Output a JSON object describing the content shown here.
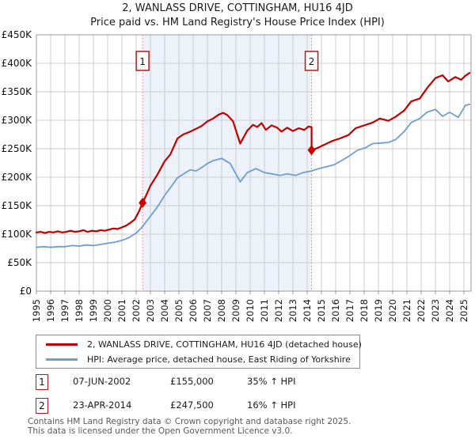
{
  "title": "2, WANLASS DRIVE, COTTINGHAM, HU16 4JD",
  "subtitle": "Price paid vs. HM Land Registry's House Price Index (HPI)",
  "colors": {
    "price_paid_line": "#c00000",
    "hpi_line": "#6d9dd1",
    "marker": "#cc0000",
    "event_line": "#e87272",
    "event_box_border": "#b21a1a",
    "shaded_band": "#edf2fa",
    "grid": "#cccccc",
    "plot_border": "#999999"
  },
  "chart_data": {
    "type": "line",
    "x_range": [
      1995,
      2025.5
    ],
    "y_range_k": [
      0,
      450
    ],
    "grid": true,
    "x_ticks": [
      1995,
      1996,
      1997,
      1998,
      1999,
      2000,
      2001,
      2002,
      2003,
      2004,
      2005,
      2006,
      2007,
      2008,
      2009,
      2010,
      2011,
      2012,
      2013,
      2014,
      2015,
      2016,
      2017,
      2018,
      2019,
      2020,
      2021,
      2022,
      2023,
      2024,
      2025
    ],
    "y_tick_values_k": [
      0,
      50,
      100,
      150,
      200,
      250,
      300,
      350,
      400,
      450
    ],
    "y_tick_labels": [
      "£0",
      "£50K",
      "£100K",
      "£150K",
      "£200K",
      "£250K",
      "£300K",
      "£350K",
      "£400K",
      "£450K"
    ],
    "shaded_region_x": [
      2002.45,
      2014.31
    ],
    "series": [
      {
        "name": "2, WANLASS DRIVE, COTTINGHAM, HU16 4JD (detached house)",
        "color": "#c00000",
        "width": 2.2,
        "points_year_valueK": [
          [
            1995.0,
            103
          ],
          [
            1995.3,
            104
          ],
          [
            1995.6,
            102
          ],
          [
            1995.9,
            104
          ],
          [
            1996.2,
            103
          ],
          [
            1996.5,
            105
          ],
          [
            1996.8,
            103
          ],
          [
            1997.1,
            104
          ],
          [
            1997.4,
            106
          ],
          [
            1997.7,
            104
          ],
          [
            1998.0,
            105
          ],
          [
            1998.3,
            107
          ],
          [
            1998.6,
            104
          ],
          [
            1998.9,
            106
          ],
          [
            1999.2,
            105
          ],
          [
            1999.5,
            107
          ],
          [
            1999.8,
            106
          ],
          [
            2000.1,
            108
          ],
          [
            2000.4,
            110
          ],
          [
            2000.7,
            109
          ],
          [
            2001.0,
            112
          ],
          [
            2001.3,
            115
          ],
          [
            2001.6,
            120
          ],
          [
            2001.9,
            126
          ],
          [
            2002.2,
            140
          ],
          [
            2002.45,
            155
          ],
          [
            2002.7,
            168
          ],
          [
            2003.0,
            185
          ],
          [
            2003.5,
            205
          ],
          [
            2004.0,
            228
          ],
          [
            2004.4,
            240
          ],
          [
            2004.9,
            268
          ],
          [
            2005.3,
            275
          ],
          [
            2005.8,
            280
          ],
          [
            2006.2,
            285
          ],
          [
            2006.6,
            290
          ],
          [
            2007.0,
            298
          ],
          [
            2007.4,
            303
          ],
          [
            2007.8,
            310
          ],
          [
            2008.1,
            313
          ],
          [
            2008.4,
            309
          ],
          [
            2008.8,
            298
          ],
          [
            2009.3,
            259
          ],
          [
            2009.8,
            282
          ],
          [
            2010.2,
            292
          ],
          [
            2010.5,
            288
          ],
          [
            2010.8,
            295
          ],
          [
            2011.1,
            283
          ],
          [
            2011.5,
            291
          ],
          [
            2011.9,
            287
          ],
          [
            2012.2,
            280
          ],
          [
            2012.6,
            287
          ],
          [
            2013.0,
            281
          ],
          [
            2013.4,
            286
          ],
          [
            2013.8,
            283
          ],
          [
            2014.1,
            289
          ],
          [
            2014.31,
            288
          ],
          [
            2014.31,
            247.5
          ],
          [
            2014.7,
            251
          ],
          [
            2015.2,
            257
          ],
          [
            2015.8,
            264
          ],
          [
            2016.3,
            268
          ],
          [
            2016.9,
            274
          ],
          [
            2017.4,
            286
          ],
          [
            2018.0,
            291
          ],
          [
            2018.6,
            296
          ],
          [
            2019.1,
            303
          ],
          [
            2019.7,
            299
          ],
          [
            2020.2,
            306
          ],
          [
            2020.8,
            317
          ],
          [
            2021.3,
            333
          ],
          [
            2021.9,
            338
          ],
          [
            2022.4,
            356
          ],
          [
            2023.0,
            374
          ],
          [
            2023.5,
            379
          ],
          [
            2023.9,
            368
          ],
          [
            2024.4,
            376
          ],
          [
            2024.8,
            371
          ],
          [
            2025.1,
            378
          ],
          [
            2025.4,
            383
          ]
        ]
      },
      {
        "name": "HPI: Average price, detached house, East Riding of Yorkshire",
        "color": "#6d9dd1",
        "width": 1.8,
        "points_year_valueK": [
          [
            1995.0,
            77
          ],
          [
            1995.5,
            78
          ],
          [
            1996.0,
            77
          ],
          [
            1996.5,
            78
          ],
          [
            1997.0,
            78
          ],
          [
            1997.5,
            80
          ],
          [
            1998.0,
            79
          ],
          [
            1998.5,
            81
          ],
          [
            1999.0,
            80
          ],
          [
            1999.5,
            82
          ],
          [
            2000.0,
            84
          ],
          [
            2000.5,
            86
          ],
          [
            2001.0,
            89
          ],
          [
            2001.5,
            94
          ],
          [
            2002.0,
            102
          ],
          [
            2002.4,
            112
          ],
          [
            2002.8,
            125
          ],
          [
            2003.2,
            138
          ],
          [
            2003.6,
            152
          ],
          [
            2004.0,
            168
          ],
          [
            2004.5,
            185
          ],
          [
            2004.9,
            199
          ],
          [
            2005.4,
            207
          ],
          [
            2005.8,
            213
          ],
          [
            2006.2,
            211
          ],
          [
            2006.6,
            217
          ],
          [
            2007.0,
            224
          ],
          [
            2007.4,
            229
          ],
          [
            2008.0,
            233
          ],
          [
            2008.6,
            224
          ],
          [
            2009.3,
            192
          ],
          [
            2009.8,
            208
          ],
          [
            2010.4,
            215
          ],
          [
            2011.0,
            208
          ],
          [
            2011.5,
            206
          ],
          [
            2012.1,
            203
          ],
          [
            2012.6,
            206
          ],
          [
            2013.2,
            203
          ],
          [
            2013.7,
            208
          ],
          [
            2014.3,
            211
          ],
          [
            2014.8,
            215
          ],
          [
            2015.3,
            218
          ],
          [
            2015.9,
            222
          ],
          [
            2016.4,
            229
          ],
          [
            2017.0,
            238
          ],
          [
            2017.5,
            247
          ],
          [
            2018.1,
            252
          ],
          [
            2018.6,
            259
          ],
          [
            2019.2,
            260
          ],
          [
            2019.7,
            261
          ],
          [
            2020.2,
            266
          ],
          [
            2020.8,
            280
          ],
          [
            2021.3,
            296
          ],
          [
            2021.9,
            303
          ],
          [
            2022.4,
            314
          ],
          [
            2023.0,
            319
          ],
          [
            2023.5,
            307
          ],
          [
            2024.0,
            314
          ],
          [
            2024.6,
            305
          ],
          [
            2025.1,
            326
          ],
          [
            2025.4,
            328
          ]
        ]
      }
    ],
    "sale_markers": [
      {
        "label": "1",
        "x_year": 2002.45,
        "value_k": 155
      },
      {
        "label": "2",
        "x_year": 2014.31,
        "value_k": 247.5
      }
    ]
  },
  "legend": {
    "items": [
      {
        "label": "2, WANLASS DRIVE, COTTINGHAM, HU16 4JD (detached house)"
      },
      {
        "label": "HPI: Average price, detached house, East Riding of Yorkshire"
      }
    ]
  },
  "annotations": [
    {
      "num": "1",
      "date": "07-JUN-2002",
      "price": "£155,000",
      "hpi": "35% ↑ HPI"
    },
    {
      "num": "2",
      "date": "23-APR-2014",
      "price": "£247,500",
      "hpi": "16% ↑ HPI"
    }
  ],
  "footer": {
    "line1": "Contains HM Land Registry data © Crown copyright and database right 2025.",
    "line2": "This data is licensed under the Open Government Licence v3.0."
  }
}
